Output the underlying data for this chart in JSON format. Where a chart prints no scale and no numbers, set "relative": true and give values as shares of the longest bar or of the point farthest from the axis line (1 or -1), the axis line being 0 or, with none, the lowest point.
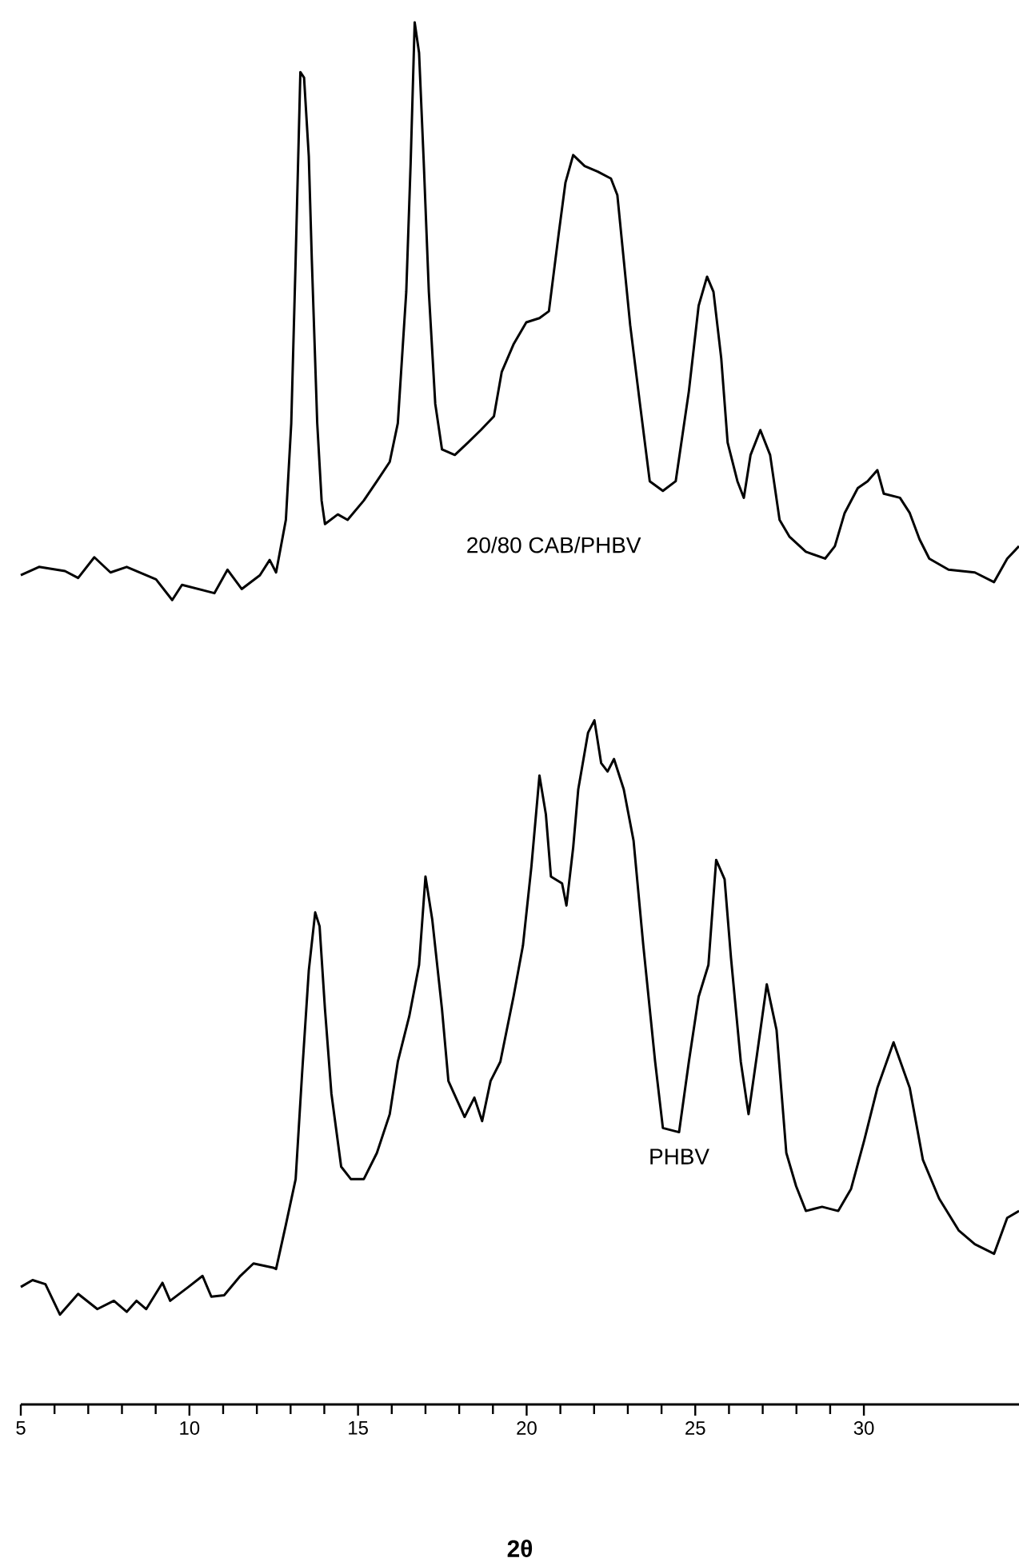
{
  "chart_data": {
    "type": "line",
    "relative": true,
    "xlabel": "2θ",
    "xlim": [
      5,
      34.6
    ],
    "xticks": [
      5,
      10,
      15,
      20,
      25,
      30
    ],
    "series": [
      {
        "name": "20/80 CAB/PHBV",
        "color": "#000000",
        "x": [
          5.0,
          5.54,
          6.31,
          6.7,
          7.18,
          7.66,
          8.14,
          9.01,
          9.49,
          9.78,
          10.74,
          11.13,
          11.55,
          12.09,
          12.38,
          12.57,
          12.86,
          13.02,
          13.15,
          13.29,
          13.4,
          13.54,
          13.63,
          13.79,
          13.92,
          14.02,
          14.4,
          14.69,
          15.17,
          15.56,
          15.94,
          16.18,
          16.43,
          16.56,
          16.68,
          16.81,
          16.95,
          17.1,
          17.29,
          17.49,
          17.87,
          18.26,
          18.64,
          19.03,
          19.26,
          19.61,
          19.99,
          20.38,
          20.66,
          20.95,
          21.15,
          21.38,
          21.72,
          22.11,
          22.5,
          22.69,
          22.88,
          23.07,
          23.36,
          23.65,
          24.04,
          24.42,
          24.81,
          25.1,
          25.35,
          25.54,
          25.77,
          25.96,
          26.25,
          26.44,
          26.64,
          26.93,
          27.22,
          27.5,
          27.79,
          28.28,
          28.85,
          29.14,
          29.43,
          29.82,
          30.11,
          30.4,
          30.59,
          31.07,
          31.36,
          31.65,
          31.94,
          32.51,
          33.29,
          33.86,
          34.25,
          34.6
        ],
        "values": [
          0.6,
          0.606,
          0.603,
          0.598,
          0.613,
          0.602,
          0.606,
          0.597,
          0.582,
          0.593,
          0.587,
          0.604,
          0.59,
          0.6,
          0.611,
          0.602,
          0.64,
          0.71,
          0.828,
          0.964,
          0.96,
          0.903,
          0.828,
          0.71,
          0.654,
          0.637,
          0.644,
          0.64,
          0.654,
          0.668,
          0.682,
          0.71,
          0.805,
          0.898,
          1.0,
          0.978,
          0.898,
          0.805,
          0.724,
          0.691,
          0.687,
          0.696,
          0.705,
          0.715,
          0.747,
          0.767,
          0.783,
          0.786,
          0.791,
          0.847,
          0.884,
          0.904,
          0.896,
          0.892,
          0.887,
          0.875,
          0.828,
          0.781,
          0.724,
          0.668,
          0.661,
          0.668,
          0.733,
          0.795,
          0.816,
          0.805,
          0.757,
          0.696,
          0.668,
          0.656,
          0.687,
          0.705,
          0.687,
          0.64,
          0.628,
          0.617,
          0.612,
          0.621,
          0.645,
          0.663,
          0.668,
          0.676,
          0.659,
          0.656,
          0.645,
          0.626,
          0.612,
          0.604,
          0.602,
          0.595,
          0.612,
          0.621
        ]
      },
      {
        "name": "PHBV",
        "color": "#000000",
        "x": [
          5.0,
          5.35,
          5.73,
          6.16,
          6.7,
          7.27,
          7.76,
          8.14,
          8.43,
          8.72,
          9.2,
          9.43,
          9.97,
          10.39,
          10.65,
          11.03,
          11.51,
          11.9,
          12.48,
          12.57,
          12.86,
          13.15,
          13.34,
          13.54,
          13.73,
          13.86,
          14.02,
          14.21,
          14.5,
          14.79,
          15.17,
          15.56,
          15.94,
          16.18,
          16.52,
          16.81,
          17.0,
          17.2,
          17.49,
          17.68,
          18.16,
          18.45,
          18.68,
          18.93,
          19.22,
          19.61,
          19.89,
          20.14,
          20.38,
          20.57,
          20.72,
          21.05,
          21.18,
          21.38,
          21.53,
          21.82,
          22.01,
          22.21,
          22.4,
          22.59,
          22.88,
          23.17,
          23.46,
          23.81,
          24.04,
          24.52,
          24.81,
          25.1,
          25.39,
          25.62,
          25.87,
          26.06,
          26.35,
          26.58,
          26.83,
          27.12,
          27.41,
          27.7,
          27.99,
          28.28,
          28.76,
          29.24,
          29.62,
          30.01,
          30.4,
          30.88,
          31.36,
          31.75,
          32.23,
          32.81,
          33.29,
          33.86,
          34.25,
          34.6
        ],
        "values": [
          0.085,
          0.09,
          0.087,
          0.065,
          0.08,
          0.069,
          0.075,
          0.067,
          0.075,
          0.069,
          0.088,
          0.075,
          0.085,
          0.093,
          0.078,
          0.079,
          0.093,
          0.102,
          0.099,
          0.098,
          0.13,
          0.163,
          0.239,
          0.314,
          0.356,
          0.346,
          0.286,
          0.225,
          0.172,
          0.163,
          0.163,
          0.182,
          0.21,
          0.248,
          0.281,
          0.318,
          0.382,
          0.351,
          0.286,
          0.234,
          0.208,
          0.222,
          0.205,
          0.234,
          0.248,
          0.295,
          0.332,
          0.389,
          0.455,
          0.427,
          0.382,
          0.377,
          0.361,
          0.403,
          0.445,
          0.486,
          0.495,
          0.464,
          0.458,
          0.467,
          0.445,
          0.408,
          0.332,
          0.248,
          0.2,
          0.197,
          0.248,
          0.295,
          0.318,
          0.394,
          0.38,
          0.323,
          0.248,
          0.21,
          0.253,
          0.304,
          0.271,
          0.182,
          0.158,
          0.14,
          0.143,
          0.14,
          0.156,
          0.191,
          0.229,
          0.262,
          0.229,
          0.177,
          0.149,
          0.126,
          0.116,
          0.109,
          0.135,
          0.14
        ]
      }
    ]
  }
}
